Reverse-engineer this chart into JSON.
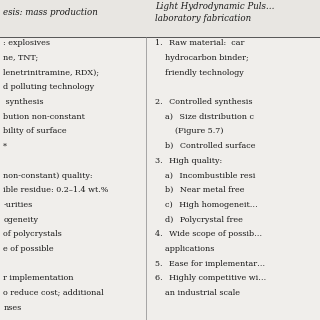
{
  "bg_color": "#f0eeeb",
  "cell_bg": "#ffffff",
  "header_bg": "#ffffff",
  "text_color": "#1a1a1a",
  "font_size": 5.8,
  "header_font_size": 6.2,
  "col_split": 0.455,
  "left_header": "esis: mass production",
  "right_header_1": "Light Hydrodynamic Puls…",
  "right_header_2": "laboratory fabrication",
  "left_lines": [
    ": explosives",
    "ne, TNT;",
    "lenetrinitramine, RDX);",
    "d polluting technology",
    " synthesis",
    "bution non-constant",
    "bility of surface",
    "*",
    "",
    "non-constant) quality:",
    "ible residue: 0.2–1.4 wt.%",
    "-urities",
    "ogeneity",
    "of polycrystals",
    "e of possible",
    "",
    "r implementation",
    "o reduce cost; additional",
    "nses"
  ],
  "right_lines": [
    "1.  Raw material:  car",
    "    hydrocarbon binder;",
    "    friendly technology",
    "",
    "2.  Controlled synthesis",
    "    a)  Size distribution c",
    "        (Figure 5.7)",
    "    b)  Controlled surface",
    "3.  High quality:",
    "    a)  Incombustible resi",
    "    b)  Near metal free",
    "    c)  High homogeneit…",
    "    d)  Polycrystal free",
    "4.  Wide scope of possib…",
    "    applications",
    "5.  Ease for implementar…",
    "6.  Highly competitive wi…",
    "    an industrial scale",
    ""
  ]
}
